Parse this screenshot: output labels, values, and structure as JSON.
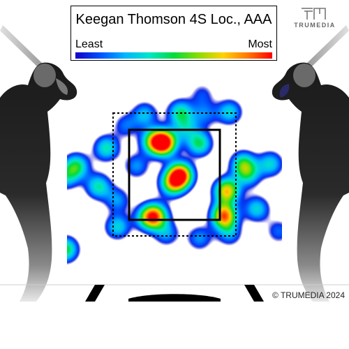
{
  "chart_data": {
    "type": "heatmap",
    "title": "Keegan Thomson 4S Loc., AAA",
    "legend": {
      "min_label": "Least",
      "max_label": "Most",
      "position": "top"
    },
    "x_range": [
      -2.2,
      2.2
    ],
    "y_range": [
      0.2,
      4.6
    ],
    "strike_zone": {
      "x": [
        -0.83,
        0.83
      ],
      "y": [
        1.5,
        3.5
      ]
    },
    "density_peaks": [
      {
        "x": -0.2,
        "y": 3.22,
        "intensity": 1.0
      },
      {
        "x": -0.4,
        "y": 3.25,
        "intensity": 0.5
      },
      {
        "x": 0.1,
        "y": 2.5,
        "intensity": 0.95
      },
      {
        "x": -0.05,
        "y": 2.3,
        "intensity": 0.55
      },
      {
        "x": 0.45,
        "y": 3.2,
        "intensity": 0.5
      },
      {
        "x": 0.2,
        "y": 3.55,
        "intensity": 0.3
      },
      {
        "x": -0.7,
        "y": 2.7,
        "intensity": 0.3
      },
      {
        "x": 0.95,
        "y": 2.15,
        "intensity": 0.75
      },
      {
        "x": 0.9,
        "y": 1.6,
        "intensity": 0.85
      },
      {
        "x": -0.35,
        "y": 1.6,
        "intensity": 0.65
      },
      {
        "x": -0.5,
        "y": 1.55,
        "intensity": 0.45
      },
      {
        "x": 1.25,
        "y": 2.75,
        "intensity": 0.5
      },
      {
        "x": 1.35,
        "y": 2.5,
        "intensity": 0.35
      },
      {
        "x": 1.75,
        "y": 2.75,
        "intensity": 0.4
      },
      {
        "x": 1.5,
        "y": 1.75,
        "intensity": 0.4
      },
      {
        "x": 1.0,
        "y": 1.2,
        "intensity": 0.3
      },
      {
        "x": 0.45,
        "y": 1.1,
        "intensity": 0.3
      },
      {
        "x": 1.0,
        "y": 3.9,
        "intensity": 0.4
      },
      {
        "x": 0.55,
        "y": 3.85,
        "intensity": 0.25
      },
      {
        "x": 0.1,
        "y": 3.9,
        "intensity": 0.45
      },
      {
        "x": -0.55,
        "y": 3.85,
        "intensity": 0.35
      },
      {
        "x": -0.9,
        "y": 3.6,
        "intensity": 0.25
      },
      {
        "x": -1.25,
        "y": 3.1,
        "intensity": 0.45
      },
      {
        "x": -1.8,
        "y": 2.7,
        "intensity": 0.5
      },
      {
        "x": -1.4,
        "y": 2.25,
        "intensity": 0.45
      },
      {
        "x": -2.0,
        "y": 2.45,
        "intensity": 0.35
      },
      {
        "x": -1.05,
        "y": 1.95,
        "intensity": 0.3
      },
      {
        "x": -1.05,
        "y": 1.35,
        "intensity": 0.4
      },
      {
        "x": -0.15,
        "y": 1.2,
        "intensity": 0.3
      },
      {
        "x": -2.0,
        "y": 0.85,
        "intensity": 0.55
      },
      {
        "x": 1.9,
        "y": 1.25,
        "intensity": 0.25
      },
      {
        "x": 0.5,
        "y": 4.3,
        "intensity": 0.2
      }
    ]
  },
  "brand": {
    "logo_text": "TRUMEDIA",
    "copyright": "© TRUMEDIA 2024"
  },
  "colors": {
    "colormap": [
      "#1400c8",
      "#0050ff",
      "#00b4ff",
      "#00e6c8",
      "#00dc3c",
      "#8cdc00",
      "#ffd200",
      "#ff7800",
      "#ff0000"
    ],
    "strike_zone": "#000000",
    "batter": "#1a1a1a"
  }
}
